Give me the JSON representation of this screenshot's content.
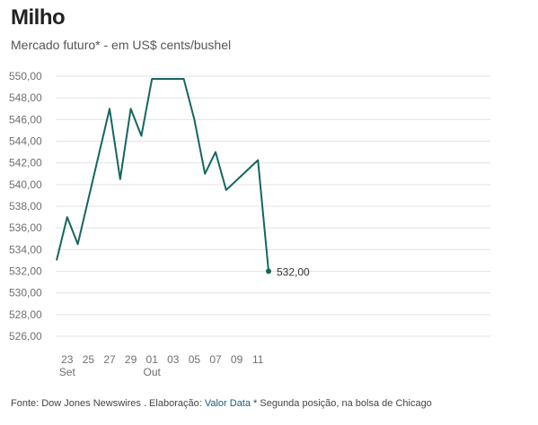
{
  "title": "Milho",
  "subtitle": "Mercado futuro* - em US$ cents/bushel",
  "footer": {
    "source": "Fonte: Dow Jones Newswires . Elaboração: ",
    "brand": "Valor Data",
    "note": " * Segunda posição, na bolsa de Chicago"
  },
  "colors": {
    "line": "#16665f",
    "grid": "#e3e3e3",
    "tick": "#6f6f6f"
  },
  "chart_data": {
    "type": "line",
    "title": "Milho",
    "subtitle": "Mercado futuro* - em US$ cents/bushel",
    "ylim": [
      526,
      550
    ],
    "y_ticks": [
      "526,00",
      "528,00",
      "530,00",
      "532,00",
      "534,00",
      "536,00",
      "538,00",
      "540,00",
      "542,00",
      "544,00",
      "546,00",
      "548,00",
      "550,00"
    ],
    "x_ticks": [
      {
        "day": "23",
        "month": "Set"
      },
      {
        "day": "25",
        "month": ""
      },
      {
        "day": "27",
        "month": ""
      },
      {
        "day": "29",
        "month": ""
      },
      {
        "day": "01",
        "month": "Out"
      },
      {
        "day": "03",
        "month": ""
      },
      {
        "day": "05",
        "month": ""
      },
      {
        "day": "07",
        "month": ""
      },
      {
        "day": "09",
        "month": ""
      },
      {
        "day": "11",
        "month": ""
      }
    ],
    "x": [
      "2022-09-22",
      "2022-09-23",
      "2022-09-24",
      "2022-09-27",
      "2022-09-28",
      "2022-09-29",
      "2022-09-30",
      "2022-10-01",
      "2022-10-04",
      "2022-10-05",
      "2022-10-06",
      "2022-10-07",
      "2022-10-08",
      "2022-10-11",
      "2022-10-12"
    ],
    "values": [
      533.0,
      537.0,
      534.5,
      547.0,
      540.5,
      547.0,
      544.5,
      549.75,
      549.75,
      546.0,
      541.0,
      543.0,
      539.5,
      542.25,
      532.0
    ],
    "end_label": "532,00",
    "grid": true
  }
}
